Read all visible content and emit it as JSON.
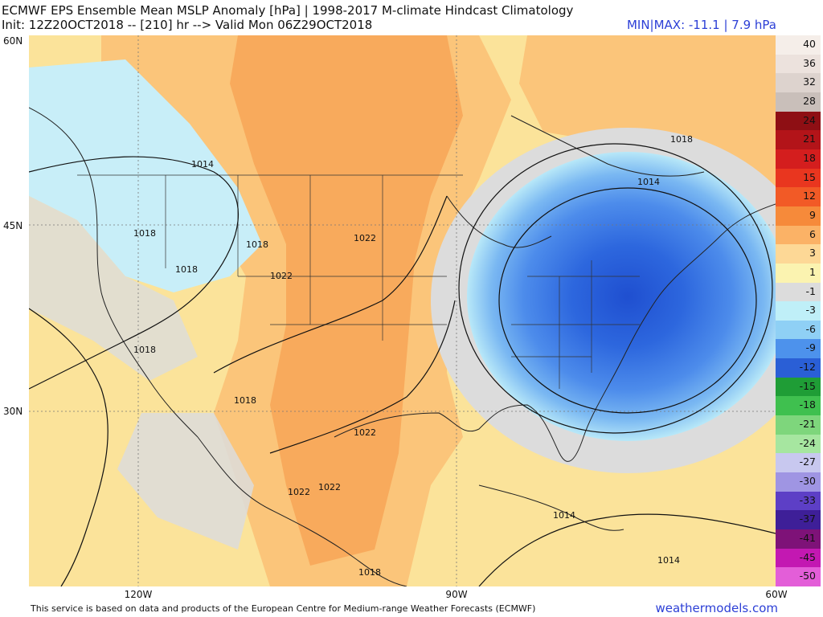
{
  "header": {
    "title": "ECMWF EPS Ensemble Mean MSLP Anomaly [hPa] | 1998-2017 M-climate Hindcast Climatology",
    "subtitle": "Init: 12Z20OCT2018 -- [210] hr --> Valid Mon 06Z29OCT2018",
    "minmax": "MIN|MAX: -11.1 |  7.9 hPa"
  },
  "axes": {
    "lat_labels": [
      "60N",
      "45N",
      "30N"
    ],
    "lon_labels": [
      "120W",
      "90W",
      "60W"
    ]
  },
  "isobar_labels": [
    "1014",
    "1018",
    "1018",
    "1018",
    "1022",
    "1022",
    "1018",
    "1018",
    "1022",
    "1022",
    "1022",
    "1018",
    "1014",
    "1018",
    "1014",
    "1014"
  ],
  "legend": {
    "values": [
      "40",
      "36",
      "32",
      "28",
      "24",
      "21",
      "18",
      "15",
      "12",
      "9",
      "6",
      "3",
      "1",
      "-1",
      "-3",
      "-6",
      "-9",
      "-12",
      "-15",
      "-18",
      "-21",
      "-24",
      "-27",
      "-30",
      "-33",
      "-37",
      "-41",
      "-45",
      "-50"
    ],
    "colors": [
      "#f5eee9",
      "#ece2dd",
      "#ddd3ce",
      "#c9bfba",
      "#8e0f14",
      "#b31419",
      "#d41e1e",
      "#e9361f",
      "#f25a26",
      "#f68a3a",
      "#fbb266",
      "#fdd896",
      "#fbf3b0",
      "#dcdcdc",
      "#bfeff8",
      "#8fd0f5",
      "#4d92ec",
      "#2a5fd6",
      "#1f9d36",
      "#3fc04f",
      "#7ed67c",
      "#a6e6a0",
      "#c8c8ef",
      "#9f95e3",
      "#5d3fc6",
      "#3e1f98",
      "#7e1278",
      "#c318b2",
      "#e35ed8"
    ]
  },
  "footer": {
    "disclaimer": "This service is based on data and products of the European Centre for Medium-range Weather Forecasts (ECMWF)",
    "brand": "weathermodels.com"
  }
}
